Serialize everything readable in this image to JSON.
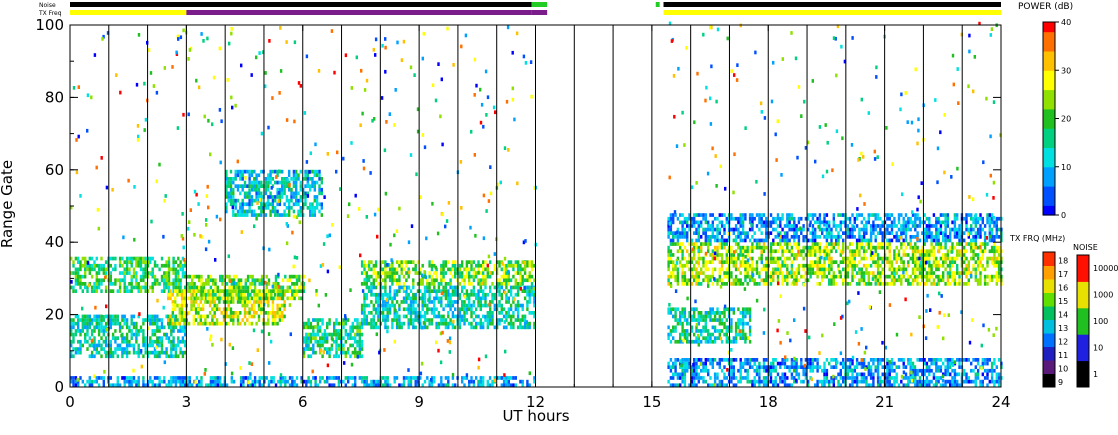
{
  "chart_data": {
    "type": "heatmap",
    "xlabel": "UT hours",
    "ylabel": "Range Gate",
    "xlim": [
      0,
      24
    ],
    "ylim": [
      0,
      100
    ],
    "x_ticks": [
      0,
      3,
      6,
      9,
      12,
      15,
      18,
      21,
      24
    ],
    "y_ticks": [
      0,
      20,
      40,
      60,
      80,
      100
    ],
    "scan_hours": [
      1,
      2,
      3,
      4,
      5,
      6,
      7,
      8,
      9,
      10,
      11,
      12,
      13,
      14,
      15,
      16,
      17,
      18,
      19,
      20,
      21,
      22,
      23
    ],
    "data_gaps_ut": [
      [
        12.0,
        15.4
      ]
    ],
    "status_bars": [
      {
        "label": "Noise",
        "segments": [
          {
            "start": 0.0,
            "end": 11.9,
            "color": "#000000"
          },
          {
            "start": 11.9,
            "end": 12.3,
            "color": "#22cc22"
          },
          {
            "start": 15.1,
            "end": 15.2,
            "color": "#22cc22"
          },
          {
            "start": 15.3,
            "end": 24.0,
            "color": "#000000"
          }
        ]
      },
      {
        "label": "TX Freq",
        "segments": [
          {
            "start": 0.0,
            "end": 3.0,
            "color": "#ffff00"
          },
          {
            "start": 3.0,
            "end": 11.9,
            "color": "#7a1c8a"
          },
          {
            "start": 11.9,
            "end": 12.3,
            "color": "#7a1c8a"
          },
          {
            "start": 15.3,
            "end": 24.0,
            "color": "#ffff00"
          }
        ]
      }
    ],
    "bands": [
      {
        "t0": 0.0,
        "t1": 3.0,
        "g0": 26,
        "g1": 36,
        "power": 18
      },
      {
        "t0": 0.0,
        "t1": 3.0,
        "g0": 8,
        "g1": 20,
        "power": 14
      },
      {
        "t0": 0.0,
        "t1": 12.0,
        "g0": 0,
        "g1": 3,
        "power": 8
      },
      {
        "t0": 2.5,
        "t1": 5.5,
        "g0": 17,
        "g1": 27,
        "power": 26
      },
      {
        "t0": 3.0,
        "t1": 6.0,
        "g0": 24,
        "g1": 31,
        "power": 22
      },
      {
        "t0": 4.0,
        "t1": 6.5,
        "g0": 47,
        "g1": 60,
        "power": 12
      },
      {
        "t0": 6.0,
        "t1": 7.5,
        "g0": 8,
        "g1": 19,
        "power": 16
      },
      {
        "t0": 7.5,
        "t1": 12.0,
        "g0": 28,
        "g1": 35,
        "power": 22
      },
      {
        "t0": 7.5,
        "t1": 12.0,
        "g0": 16,
        "g1": 28,
        "power": 14
      },
      {
        "t0": 15.4,
        "t1": 24.0,
        "g0": 28,
        "g1": 40,
        "power": 24
      },
      {
        "t0": 15.4,
        "t1": 24.0,
        "g0": 40,
        "g1": 48,
        "power": 8
      },
      {
        "t0": 15.4,
        "t1": 17.5,
        "g0": 12,
        "g1": 22,
        "power": 14
      },
      {
        "t0": 15.4,
        "t1": 24.0,
        "g0": 0,
        "g1": 8,
        "power": 8
      }
    ],
    "colorbars": {
      "power": {
        "title": "POWER (dB)",
        "range": [
          0,
          40
        ],
        "ticks": [
          0,
          10,
          20,
          30,
          40
        ]
      },
      "tx_freq": {
        "title": "TX FRQ (MHz)",
        "ticks": [
          9,
          10,
          11,
          12,
          13,
          14,
          15,
          16,
          17,
          18
        ]
      },
      "noise": {
        "title": "NOISE",
        "ticks": [
          1,
          10,
          100,
          1000,
          10000
        ]
      }
    }
  }
}
